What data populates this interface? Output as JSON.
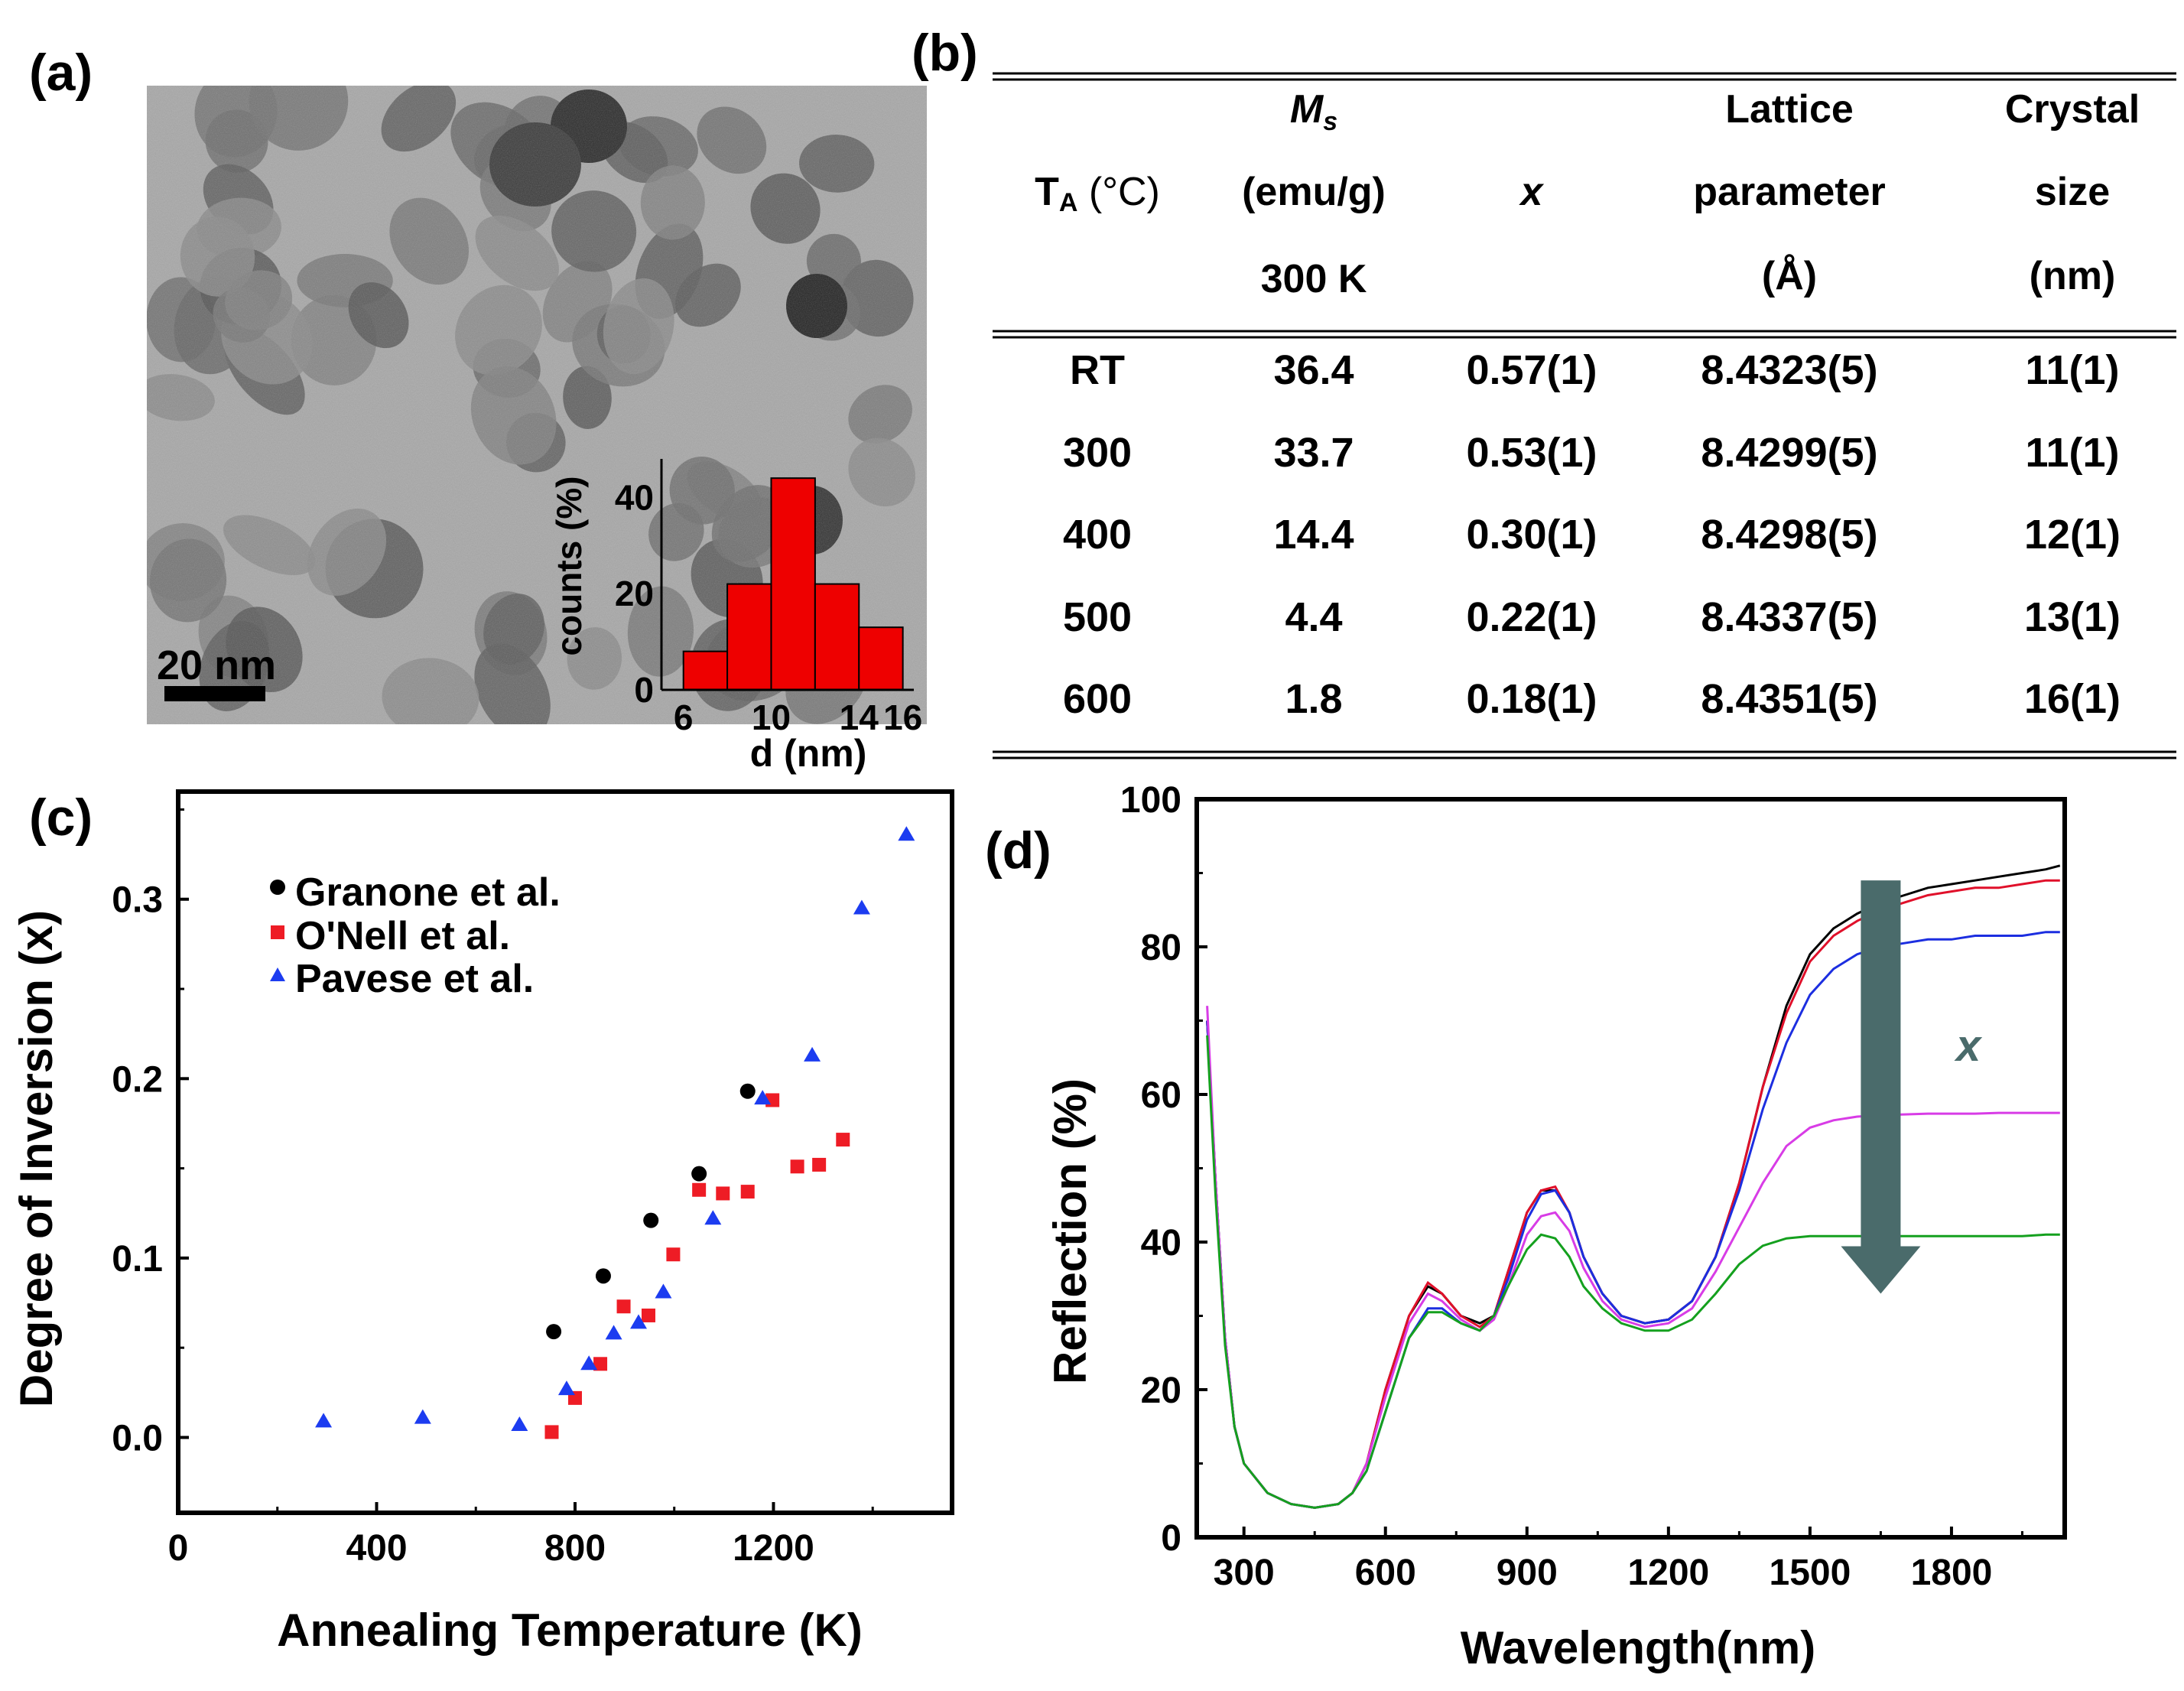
{
  "panel_labels": {
    "a": "(a)",
    "b": "(b)",
    "c": "(c)",
    "d": "(d)"
  },
  "panel_a": {
    "scale_bar": "20 nm",
    "histogram": {
      "type": "bar",
      "xlabel": "d (nm)",
      "ylabel": "counts (%)",
      "x_ticks": [
        "6",
        "10",
        "14",
        "16"
      ],
      "y_ticks": [
        "0",
        "20",
        "40"
      ],
      "bins": [
        [
          6,
          8
        ],
        [
          8,
          10
        ],
        [
          10,
          12
        ],
        [
          12,
          14
        ],
        [
          14,
          16
        ]
      ],
      "values": [
        8,
        22,
        44,
        22,
        13
      ],
      "ylim": [
        0,
        48
      ],
      "color": "#ee0000"
    }
  },
  "panel_b": {
    "header": {
      "ta": "T",
      "ta_sub": "A",
      "ta_unit": " (°C)",
      "ms_symbol": "M",
      "ms_sub": "s",
      "ms_unit": "(emu/g)",
      "ms_temp": "300 K",
      "x": "x",
      "lattice_1": "Lattice",
      "lattice_2": "parameter",
      "lattice_3": "(Å)",
      "crystal_1": "Crystal",
      "crystal_2": "size",
      "crystal_3": "(nm)"
    },
    "rows": [
      {
        "ta": "RT",
        "ms": "36.4",
        "x": "0.57(1)",
        "lattice": "8.4323(5)",
        "size": "11(1)"
      },
      {
        "ta": "300",
        "ms": "33.7",
        "x": "0.53(1)",
        "lattice": "8.4299(5)",
        "size": "11(1)"
      },
      {
        "ta": "400",
        "ms": "14.4",
        "x": "0.30(1)",
        "lattice": "8.4298(5)",
        "size": "12(1)"
      },
      {
        "ta": "500",
        "ms": "4.4",
        "x": "0.22(1)",
        "lattice": "8.4337(5)",
        "size": "13(1)"
      },
      {
        "ta": "600",
        "ms": "1.8",
        "x": "0.18(1)",
        "lattice": "8.4351(5)",
        "size": "16(1)"
      }
    ]
  },
  "chart_data": [
    {
      "panel": "c",
      "type": "scatter",
      "xlabel": "Annealing Temperature (K)",
      "ylabel": "Degree of Inversion (x)",
      "xlim": [
        0,
        1560
      ],
      "ylim": [
        -0.042,
        0.36
      ],
      "x_ticks": [
        0,
        400,
        800,
        1200
      ],
      "y_ticks": [
        0.0,
        0.1,
        0.2,
        0.3
      ],
      "y_tick_labels": [
        "0.0",
        "0.1",
        "0.2",
        "0.3"
      ],
      "legend_position": "top-left",
      "series": [
        {
          "name": "Granone et al.",
          "marker": "circle",
          "color": "#000000",
          "x": [
            757,
            857,
            953,
            1050,
            1148
          ],
          "y": [
            0.059,
            0.09,
            0.121,
            0.147,
            0.193
          ]
        },
        {
          "name": "O'Nell et al.",
          "marker": "square",
          "color": "#ee1c25",
          "x": [
            753,
            800,
            851,
            898,
            948,
            998,
            1050,
            1098,
            1148,
            1198,
            1248,
            1292,
            1340
          ],
          "y": [
            0.003,
            0.022,
            0.041,
            0.073,
            0.068,
            0.102,
            0.138,
            0.136,
            0.137,
            0.188,
            0.151,
            0.152,
            0.166
          ]
        },
        {
          "name": "Pavese et al.",
          "marker": "triangle",
          "color": "#1c3cf0",
          "x": [
            293,
            493,
            688,
            783,
            828,
            878,
            928,
            978,
            1078,
            1178,
            1278,
            1378,
            1468
          ],
          "y": [
            0.009,
            0.011,
            0.007,
            0.027,
            0.041,
            0.058,
            0.064,
            0.081,
            0.122,
            0.189,
            0.213,
            0.295,
            0.336
          ]
        }
      ]
    },
    {
      "panel": "d",
      "type": "line",
      "xlabel": "Wavelength(nm)",
      "ylabel": "Reflection (%)",
      "xlim": [
        200,
        2040
      ],
      "ylim": [
        0,
        100
      ],
      "x_ticks": [
        300,
        600,
        900,
        1200,
        1500,
        1800
      ],
      "y_ticks": [
        0,
        20,
        40,
        60,
        80,
        100
      ],
      "annotation": "x",
      "arrow": {
        "x": 1650,
        "y_from": 89,
        "y_to": 33,
        "color": "#4a6b6b"
      },
      "series": [
        {
          "name": "black",
          "color": "#000000",
          "x": [
            222,
            240,
            260,
            280,
            300,
            350,
            400,
            450,
            500,
            530,
            560,
            600,
            650,
            690,
            720,
            760,
            800,
            830,
            860,
            900,
            930,
            960,
            990,
            1020,
            1060,
            1100,
            1150,
            1200,
            1250,
            1300,
            1350,
            1400,
            1450,
            1500,
            1550,
            1600,
            1650,
            1700,
            1750,
            1800,
            1850,
            1900,
            1950,
            2000,
            2030
          ],
          "y": [
            70,
            48,
            27,
            15,
            10,
            6,
            4.5,
            4,
            4.5,
            6,
            10,
            20,
            30,
            34,
            33,
            30,
            29,
            30,
            36,
            44,
            47,
            47,
            44,
            38,
            33,
            30,
            29,
            29.5,
            32,
            38,
            48,
            61,
            72,
            79,
            82.5,
            84.5,
            86,
            87,
            88,
            88.5,
            89,
            89.5,
            90,
            90.5,
            91
          ]
        },
        {
          "name": "red",
          "color": "#e0102a",
          "x": [
            222,
            240,
            260,
            280,
            300,
            350,
            400,
            450,
            500,
            530,
            560,
            600,
            650,
            690,
            720,
            760,
            800,
            830,
            860,
            900,
            930,
            960,
            990,
            1020,
            1060,
            1100,
            1150,
            1200,
            1250,
            1300,
            1350,
            1400,
            1450,
            1500,
            1550,
            1600,
            1650,
            1700,
            1750,
            1800,
            1850,
            1900,
            1950,
            2000,
            2030
          ],
          "y": [
            70,
            48,
            27,
            15,
            10,
            6,
            4.5,
            4,
            4.5,
            6,
            10,
            20,
            30,
            34.5,
            33,
            30,
            28.5,
            30,
            36,
            44,
            47,
            47.5,
            44,
            38,
            33,
            30,
            29,
            29.5,
            32,
            38,
            48,
            61,
            71,
            78,
            81.5,
            83.5,
            85,
            86,
            87,
            87.5,
            88,
            88,
            88.5,
            89,
            89
          ]
        },
        {
          "name": "blue",
          "color": "#1c2ee0",
          "x": [
            222,
            240,
            260,
            280,
            300,
            350,
            400,
            450,
            500,
            530,
            560,
            600,
            650,
            690,
            720,
            760,
            800,
            830,
            860,
            900,
            930,
            960,
            990,
            1020,
            1060,
            1100,
            1150,
            1200,
            1250,
            1300,
            1350,
            1400,
            1450,
            1500,
            1550,
            1600,
            1650,
            1700,
            1750,
            1800,
            1850,
            1900,
            1950,
            2000,
            2030
          ],
          "y": [
            70,
            48,
            27,
            15,
            10,
            6,
            4.5,
            4,
            4.5,
            6,
            9,
            17,
            27,
            31,
            31,
            29,
            28,
            30,
            35,
            43,
            46.5,
            47,
            44,
            38,
            33,
            30,
            29,
            29.5,
            32,
            38,
            47,
            58,
            67,
            73.5,
            77,
            79,
            80,
            80.5,
            81,
            81,
            81.5,
            81.5,
            81.5,
            82,
            82
          ]
        },
        {
          "name": "magenta",
          "color": "#d83ce6",
          "x": [
            222,
            240,
            260,
            280,
            300,
            350,
            400,
            450,
            500,
            530,
            560,
            600,
            650,
            690,
            720,
            760,
            800,
            830,
            860,
            900,
            930,
            960,
            990,
            1020,
            1060,
            1100,
            1150,
            1200,
            1250,
            1300,
            1350,
            1400,
            1450,
            1500,
            1550,
            1600,
            1650,
            1700,
            1750,
            1800,
            1850,
            1900,
            1950,
            2000,
            2030
          ],
          "y": [
            72,
            48,
            27,
            15,
            10,
            6,
            4.5,
            4,
            4.5,
            6,
            10,
            19,
            29,
            33,
            32,
            29.5,
            28,
            29.5,
            34,
            41,
            43.5,
            44,
            41.5,
            36.5,
            32,
            29.5,
            28.5,
            29,
            31,
            36,
            42,
            48,
            53,
            55.5,
            56.5,
            57,
            57.2,
            57.3,
            57.4,
            57.4,
            57.4,
            57.5,
            57.5,
            57.5,
            57.5
          ]
        },
        {
          "name": "green",
          "color": "#14a01e",
          "x": [
            222,
            240,
            260,
            280,
            300,
            350,
            400,
            450,
            500,
            530,
            560,
            600,
            650,
            690,
            720,
            760,
            800,
            830,
            860,
            900,
            930,
            960,
            990,
            1020,
            1060,
            1100,
            1150,
            1200,
            1250,
            1300,
            1350,
            1400,
            1450,
            1500,
            1550,
            1600,
            1650,
            1700,
            1750,
            1800,
            1850,
            1900,
            1950,
            2000,
            2030
          ],
          "y": [
            68,
            46,
            26,
            15,
            10,
            6,
            4.5,
            4,
            4.5,
            6,
            9,
            17,
            27,
            30.5,
            30.5,
            29,
            28,
            30,
            34,
            39,
            41,
            40.5,
            38,
            34,
            31,
            29,
            28,
            28,
            29.5,
            33,
            37,
            39.5,
            40.5,
            40.8,
            40.8,
            40.8,
            40.8,
            40.8,
            40.8,
            40.8,
            40.8,
            40.8,
            40.8,
            41,
            41
          ]
        }
      ]
    }
  ]
}
